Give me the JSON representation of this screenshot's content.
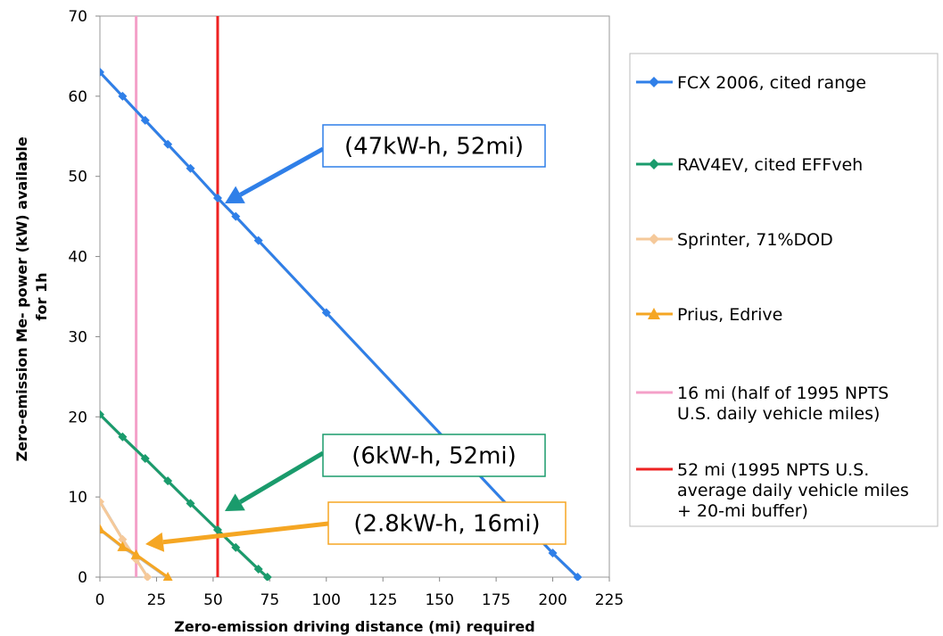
{
  "chart_data": {
    "type": "line",
    "xlabel": "Zero-emission driving distance (mi) required",
    "ylabel_line1": "Zero-emission Me- power (kW) available",
    "ylabel_line2": "for 1h",
    "xlim": [
      0,
      225
    ],
    "ylim": [
      0,
      70
    ],
    "x_ticks": [
      "0",
      "25",
      "50",
      "75",
      "100",
      "125",
      "150",
      "175",
      "200",
      "225"
    ],
    "y_ticks": [
      "0",
      "10",
      "20",
      "30",
      "40",
      "50",
      "60",
      "70"
    ],
    "grid": false,
    "legend_position": "right",
    "series": [
      {
        "name": "FCX 2006, cited range",
        "color": "#2f7fe8",
        "marker": "diamond",
        "x": [
          0,
          10,
          20,
          30,
          40,
          52,
          60,
          70,
          100,
          200,
          211
        ],
        "y": [
          63,
          60,
          57,
          54,
          51,
          47.3,
          45,
          42,
          33,
          3,
          0
        ]
      },
      {
        "name": "RAV4EV, cited EFFveh",
        "color": "#1a9b6c",
        "marker": "diamond",
        "x": [
          0,
          10,
          20,
          30,
          40,
          52,
          60,
          70,
          74
        ],
        "y": [
          20.3,
          17.5,
          14.8,
          12,
          9.2,
          5.9,
          3.7,
          1,
          0
        ]
      },
      {
        "name": "Sprinter, 71%DOD",
        "color": "#f5c99a",
        "marker": "diamond",
        "x": [
          0,
          10,
          16,
          21
        ],
        "y": [
          9.4,
          4.7,
          2.2,
          0
        ]
      },
      {
        "name": "Prius, Edrive",
        "color": "#f5a623",
        "marker": "triangle",
        "x": [
          0,
          10,
          16,
          30
        ],
        "y": [
          6,
          3.8,
          2.8,
          0
        ]
      }
    ],
    "vlines": [
      {
        "name": "16 mi (half of 1995 NPTS U.S. daily vehicle miles)",
        "x": 16,
        "color": "#f4a0c8"
      },
      {
        "name": "52 mi (1995 NPTS U.S. average daily vehicle miles + 20-mi buffer)",
        "x": 52,
        "color": "#ee2222"
      }
    ],
    "legend": [
      {
        "lines": [
          "FCX 2006, cited range"
        ],
        "color": "#2f7fe8",
        "marker": "diamond"
      },
      {
        "lines": [
          "RAV4EV, cited EFFveh"
        ],
        "color": "#1a9b6c",
        "marker": "diamond"
      },
      {
        "lines": [
          "Sprinter, 71%DOD"
        ],
        "color": "#f5c99a",
        "marker": "diamond"
      },
      {
        "lines": [
          "Prius, Edrive"
        ],
        "color": "#f5a623",
        "marker": "triangle"
      },
      {
        "lines": [
          "16 mi (half of 1995 NPTS",
          "U.S. daily vehicle miles)"
        ],
        "color": "#f4a0c8",
        "marker": "none"
      },
      {
        "lines": [
          "52 mi (1995 NPTS U.S.",
          "average daily vehicle miles",
          "+ 20-mi buffer)"
        ],
        "color": "#ee2222",
        "marker": "none"
      }
    ],
    "annotations": [
      {
        "text": "(47kW-h, 52mi)",
        "color": "#2f7fe8",
        "target_x": 52,
        "target_y": 47.3
      },
      {
        "text": "(6kW-h, 52mi)",
        "color": "#1a9b6c",
        "target_x": 52,
        "target_y": 5.9
      },
      {
        "text": "(2.8kW-h, 16mi)",
        "color": "#f5a623",
        "target_x": 16,
        "target_y": 2.8
      }
    ]
  }
}
